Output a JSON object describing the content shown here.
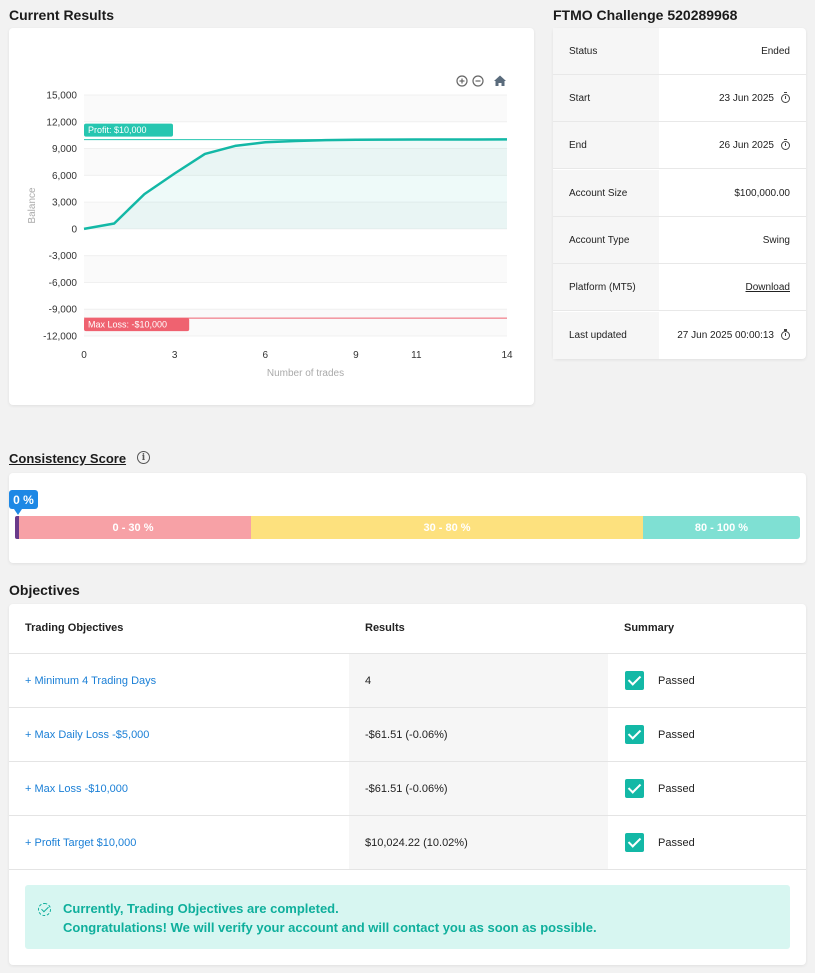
{
  "current_results": {
    "title": "Current Results"
  },
  "chart_data": {
    "type": "line",
    "xlabel": "Number of trades",
    "ylabel": "Balance",
    "xlim": [
      0,
      14
    ],
    "ylim": [
      -12000,
      15000
    ],
    "x_ticks": [
      "0",
      "3",
      "6",
      "9",
      "11",
      "14"
    ],
    "x_tick_values": [
      0,
      3,
      6,
      9,
      11,
      14
    ],
    "y_ticks": [
      "15,000",
      "12,000",
      "9,000",
      "6,000",
      "3,000",
      "0",
      "-3,000",
      "-6,000",
      "-9,000",
      "-12,000"
    ],
    "y_tick_values": [
      15000,
      12000,
      9000,
      6000,
      3000,
      0,
      -3000,
      -6000,
      -9000,
      -12000
    ],
    "series": [
      {
        "x": [
          0,
          1,
          2,
          3,
          4,
          5,
          6,
          7,
          8,
          9,
          10,
          11,
          12,
          13,
          14
        ],
        "values": [
          0,
          600,
          3900,
          6200,
          8400,
          9300,
          9700,
          9850,
          9950,
          9990,
          10000,
          10010,
          10015,
          10020,
          10024
        ]
      }
    ],
    "annotations": [
      {
        "label": "Profit: $10,000",
        "y": 10000,
        "color": "#26c6b0"
      },
      {
        "label": "Max Loss: -$10,000",
        "y": -10000,
        "color": "#ef6270"
      }
    ],
    "line_color": "#13b8a6"
  },
  "toolbar": {
    "zoom_in_icon": "zoom-in-icon",
    "zoom_out_icon": "zoom-out-icon",
    "home_icon": "home-icon"
  },
  "account": {
    "title": "FTMO Challenge 520289968",
    "rows": [
      {
        "label": "Status",
        "value": "Ended",
        "clock": false
      },
      {
        "label": "Start",
        "value": "23 Jun 2025",
        "clock": true
      },
      {
        "label": "End",
        "value": "26 Jun 2025",
        "clock": true
      },
      {
        "label": "Account Size",
        "value": "$100,000.00",
        "clock": false
      },
      {
        "label": "Account Type",
        "value": "Swing",
        "clock": false
      },
      {
        "label": "Platform (MT5)",
        "value": "Download",
        "clock": false,
        "link": true
      },
      {
        "label": "Last updated",
        "value": "27 Jun 2025 00:00:13",
        "clock": true
      }
    ]
  },
  "consistency": {
    "title": "Consistency Score",
    "score": "0 %",
    "segments": [
      "0 - 30 %",
      "30 - 80 %",
      "80 - 100 %"
    ]
  },
  "objectives": {
    "title": "Objectives",
    "headers": [
      "Trading Objectives",
      "Results",
      "Summary"
    ],
    "rows": [
      {
        "name": "+ Minimum 4 Trading Days",
        "result": "4",
        "summary": "Passed"
      },
      {
        "name": "+ Max Daily Loss -$5,000",
        "result": "-$61.51 (-0.06%)",
        "summary": "Passed"
      },
      {
        "name": "+ Max Loss -$10,000",
        "result": "-$61.51 (-0.06%)",
        "summary": "Passed"
      },
      {
        "name": "+ Profit Target $10,000",
        "result": "$10,024.22 (10.02%)",
        "summary": "Passed"
      }
    ],
    "notice_line1": "Currently, Trading Objectives are completed.",
    "notice_line2": "Congratulations! We will verify your account and will contact you as soon as possible."
  }
}
